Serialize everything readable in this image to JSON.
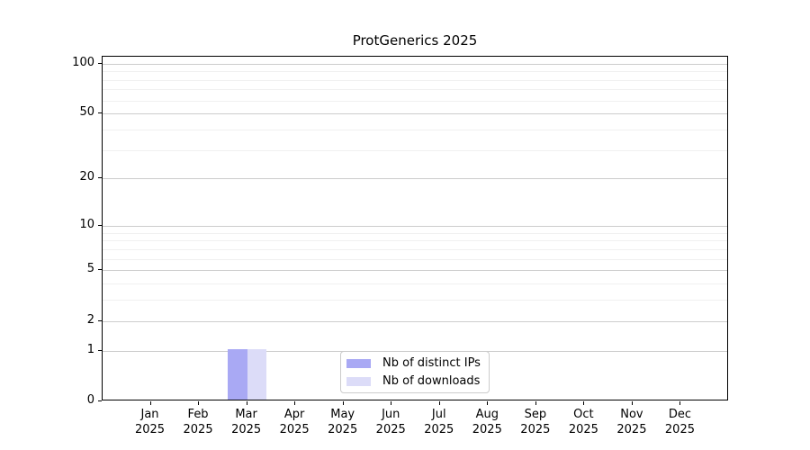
{
  "title": "ProtGenerics 2025",
  "chart_data": {
    "type": "bar",
    "title": "ProtGenerics 2025",
    "scale": "log1p",
    "x": [
      "Jan 2025",
      "Feb 2025",
      "Mar 2025",
      "Apr 2025",
      "May 2025",
      "Jun 2025",
      "Jul 2025",
      "Aug 2025",
      "Sep 2025",
      "Oct 2025",
      "Nov 2025",
      "Dec 2025"
    ],
    "months": [
      "Jan",
      "Feb",
      "Mar",
      "Apr",
      "May",
      "Jun",
      "Jul",
      "Aug",
      "Sep",
      "Oct",
      "Nov",
      "Dec"
    ],
    "year": "2025",
    "series": [
      {
        "name": "Nb of distinct IPs",
        "color": "#a9a9f4",
        "values": [
          0,
          0,
          1,
          0,
          0,
          0,
          0,
          0,
          0,
          0,
          0,
          0
        ]
      },
      {
        "name": "Nb of downloads",
        "color": "#dcdcf8",
        "values": [
          0,
          0,
          1,
          0,
          0,
          0,
          0,
          0,
          0,
          0,
          0,
          0
        ]
      }
    ],
    "y_major_ticks": [
      0,
      1,
      2,
      5,
      10,
      20,
      50,
      100
    ],
    "y_minor_gridlines": [
      3,
      4,
      6,
      7,
      8,
      9,
      30,
      40,
      60,
      70,
      80,
      90
    ],
    "ylim": [
      0,
      110
    ],
    "xlabel": "",
    "ylabel": "",
    "grid": true,
    "legend": {
      "position": "bottom-center",
      "items": [
        {
          "label": "Nb of distinct IPs",
          "color": "#a9a9f4"
        },
        {
          "label": "Nb of downloads",
          "color": "#dcdcf8"
        }
      ]
    }
  },
  "colors": {
    "background": "#ffffff",
    "axis": "#000000",
    "major_grid": "#cdcdcd",
    "minor_grid": "#f0f0f0",
    "legend_border": "#cccccc"
  }
}
